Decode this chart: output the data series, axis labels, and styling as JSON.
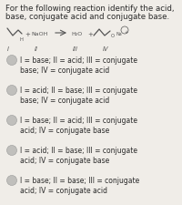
{
  "title_line1": "For the following reaction identify the acid,",
  "title_line2": "base, conjugate acid and conjugate base.",
  "bg_color": "#f0ede8",
  "text_color": "#2a2a2a",
  "mol_color": "#555555",
  "options": [
    "I = base; II = acid; III = conjugate\nbase; IV = conjugate acid",
    "I = acid; II = base; III = conjugate\nbase; IV = conjugate acid",
    "I = base; II = acid; III = conjugate\nacid; IV = conjugate base",
    "I = acid; II = base; III = conjugate\nacid; IV = conjugate base",
    "I = base; II = base; III = conjugate\nacid; IV = conjugate acid"
  ],
  "bullet_color": "#c0bfbc",
  "font_size_title": 6.2,
  "font_size_option": 5.5,
  "font_size_label": 4.8
}
